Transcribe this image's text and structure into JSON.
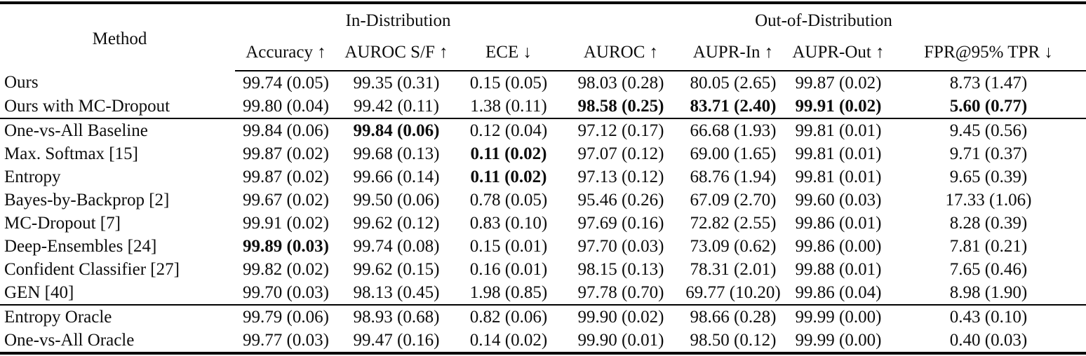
{
  "table": {
    "method_header": "Method",
    "group_headers": [
      {
        "label": "In-Distribution",
        "colspan": 3
      },
      {
        "label": "Out-of-Distribution",
        "colspan": 4
      }
    ],
    "columns": [
      "Accuracy ↑",
      "AUROC S/F ↑",
      "ECE ↓",
      "AUROC ↑",
      "AUPR-In ↑",
      "AUPR-Out ↑",
      "FPR@95% TPR ↓"
    ],
    "colors": {
      "text": "#0d0d0d",
      "background": "#ffffff",
      "rule": "#000000"
    },
    "sections": [
      {
        "rows": [
          {
            "method": "Ours",
            "values": [
              "99.74 (0.05)",
              "99.35 (0.31)",
              "0.15 (0.05)",
              "98.03 (0.28)",
              "80.05 (2.65)",
              "99.87 (0.02)",
              "8.73 (1.47)"
            ],
            "bold": []
          },
          {
            "method": "Ours with MC-Dropout",
            "values": [
              "99.80 (0.04)",
              "99.42 (0.11)",
              "1.38 (0.11)",
              "98.58 (0.25)",
              "83.71 (2.40)",
              "99.91 (0.02)",
              "5.60 (0.77)"
            ],
            "bold": [
              3,
              4,
              5,
              6
            ]
          }
        ]
      },
      {
        "rows": [
          {
            "method": "One-vs-All Baseline",
            "values": [
              "99.84 (0.06)",
              "99.84 (0.06)",
              "0.12 (0.04)",
              "97.12 (0.17)",
              "66.68 (1.93)",
              "99.81 (0.01)",
              "9.45 (0.56)"
            ],
            "bold": [
              1
            ]
          },
          {
            "method": "Max. Softmax [15]",
            "values": [
              "99.87 (0.02)",
              "99.68 (0.13)",
              "0.11 (0.02)",
              "97.07 (0.12)",
              "69.00 (1.65)",
              "99.81 (0.01)",
              "9.71 (0.37)"
            ],
            "bold": [
              2
            ]
          },
          {
            "method": "Entropy",
            "values": [
              "99.87 (0.02)",
              "99.66 (0.14)",
              "0.11 (0.02)",
              "97.13 (0.12)",
              "68.76 (1.94)",
              "99.81 (0.01)",
              "9.65 (0.39)"
            ],
            "bold": [
              2
            ]
          },
          {
            "method": "Bayes-by-Backprop [2]",
            "values": [
              "99.67 (0.02)",
              "99.50 (0.06)",
              "0.78 (0.05)",
              "95.46 (0.26)",
              "67.09 (2.70)",
              "99.60 (0.03)",
              "17.33 (1.06)"
            ],
            "bold": []
          },
          {
            "method": "MC-Dropout [7]",
            "values": [
              "99.91 (0.02)",
              "99.62 (0.12)",
              "0.83 (0.10)",
              "97.69 (0.16)",
              "72.82 (2.55)",
              "99.86 (0.01)",
              "8.28 (0.39)"
            ],
            "bold": []
          },
          {
            "method": "Deep-Ensembles [24]",
            "values": [
              "99.89 (0.03)",
              "99.74 (0.08)",
              "0.15 (0.01)",
              "97.70 (0.03)",
              "73.09 (0.62)",
              "99.86 (0.00)",
              "7.81 (0.21)"
            ],
            "bold": [
              0
            ]
          },
          {
            "method": "Confident Classifier [27]",
            "values": [
              "99.82 (0.02)",
              "99.62 (0.15)",
              "0.16 (0.01)",
              "98.15 (0.13)",
              "78.31 (2.01)",
              "99.88 (0.01)",
              "7.65 (0.46)"
            ],
            "bold": []
          },
          {
            "method": "GEN [40]",
            "values": [
              "99.70 (0.03)",
              "98.13 (0.45)",
              "1.98 (0.85)",
              "97.78 (0.70)",
              "69.77 (10.20)",
              "99.86 (0.04)",
              "8.98 (1.90)"
            ],
            "bold": []
          }
        ]
      },
      {
        "rows": [
          {
            "method": "Entropy Oracle",
            "values": [
              "99.79 (0.06)",
              "98.93 (0.68)",
              "0.82 (0.06)",
              "99.90 (0.02)",
              "98.66 (0.28)",
              "99.99 (0.00)",
              "0.43 (0.10)"
            ],
            "bold": []
          },
          {
            "method": "One-vs-All Oracle",
            "values": [
              "99.77 (0.03)",
              "99.47 (0.16)",
              "0.14 (0.02)",
              "99.90 (0.01)",
              "98.50 (0.12)",
              "99.99 (0.00)",
              "0.40 (0.03)"
            ],
            "bold": []
          }
        ]
      }
    ]
  }
}
